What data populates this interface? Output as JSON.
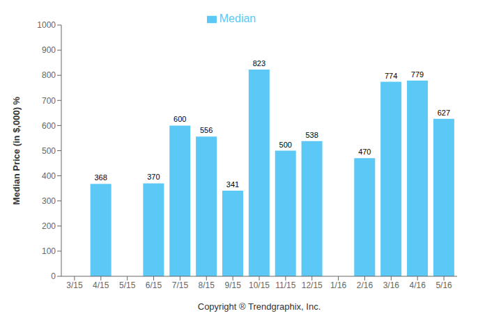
{
  "chart_data": {
    "type": "bar",
    "categories": [
      "3/15",
      "4/15",
      "5/15",
      "6/15",
      "7/15",
      "8/15",
      "9/15",
      "10/15",
      "11/15",
      "12/15",
      "1/16",
      "2/16",
      "3/16",
      "4/16",
      "5/16"
    ],
    "series": [
      {
        "name": "Median",
        "color": "#5BC8F5",
        "values": [
          0,
          368,
          0,
          370,
          600,
          556,
          341,
          823,
          500,
          538,
          0,
          470,
          774,
          779,
          627
        ]
      }
    ],
    "ylim": [
      0,
      1000
    ],
    "yticks": [
      0,
      100,
      200,
      300,
      400,
      500,
      600,
      700,
      800,
      900,
      1000
    ],
    "ylabel": "Median Price (in $,000)  %",
    "xlabel": "Copyright ® Trendgraphix, Inc.",
    "legend": "top",
    "data_labels": true,
    "grid": false
  }
}
